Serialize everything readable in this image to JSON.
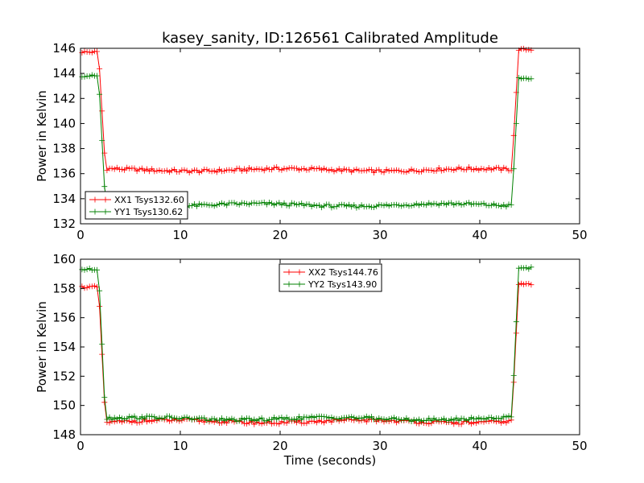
{
  "chart_data": {
    "title": "kasey_sanity, ID:126561 Calibrated Amplitude",
    "panels": [
      {
        "type": "line",
        "ylabel": "Power in Kelvin",
        "xlabel": "",
        "xlim": [
          0,
          50
        ],
        "ylim": [
          132,
          146
        ],
        "xticks": [
          0,
          10,
          20,
          30,
          40,
          50
        ],
        "yticks": [
          132,
          134,
          136,
          138,
          140,
          142,
          144,
          146
        ],
        "grid": false,
        "legend_position": "lower-left",
        "marker": "+",
        "series": [
          {
            "name": "XX1 Tsys132.60",
            "color": "#ff0000",
            "low": 136.3,
            "high_start": 145.7,
            "high_end": 145.9,
            "transition_start": [
              1.8,
              2.5
            ],
            "transition_end": [
              43.2,
              43.9
            ]
          },
          {
            "name": "YY1 Tsys130.62",
            "color": "#008000",
            "low": 133.5,
            "high_start": 143.8,
            "high_end": 143.6,
            "transition_start": [
              1.8,
              2.5
            ],
            "transition_end": [
              43.2,
              43.9
            ]
          }
        ]
      },
      {
        "type": "line",
        "ylabel": "Power in Kelvin",
        "xlabel": "Time (seconds)",
        "xlim": [
          0,
          50
        ],
        "ylim": [
          148,
          160
        ],
        "xticks": [
          0,
          10,
          20,
          30,
          40,
          50
        ],
        "yticks": [
          148,
          150,
          152,
          154,
          156,
          158,
          160
        ],
        "grid": false,
        "legend_position": "upper-center",
        "marker": "+",
        "series": [
          {
            "name": "XX2 Tsys144.76",
            "color": "#ff0000",
            "low": 148.9,
            "high_start": 158.1,
            "high_end": 158.3,
            "transition_start": [
              1.8,
              2.5
            ],
            "transition_end": [
              43.2,
              43.9
            ]
          },
          {
            "name": "YY2 Tsys143.90",
            "color": "#008000",
            "low": 149.1,
            "high_start": 159.3,
            "high_end": 159.4,
            "transition_start": [
              1.8,
              2.5
            ],
            "transition_end": [
              43.2,
              43.9
            ]
          }
        ]
      }
    ]
  }
}
